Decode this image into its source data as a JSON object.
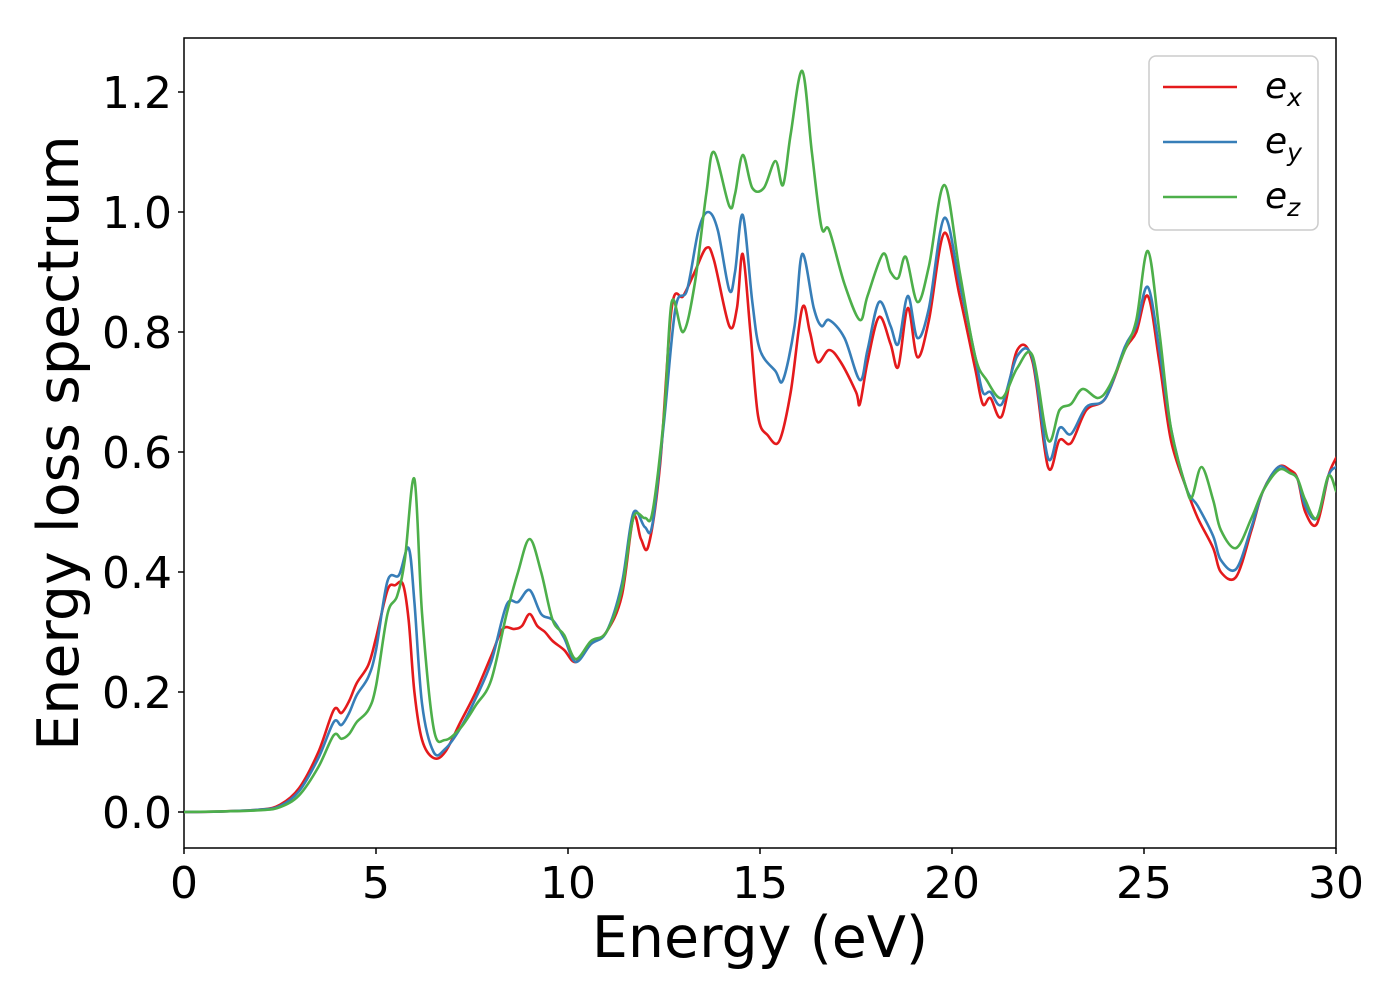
{
  "chart_data": {
    "type": "line",
    "title": "",
    "xlabel": "Energy (eV)",
    "ylabel": "Energy loss spectrum",
    "xlim": [
      0,
      30
    ],
    "ylim": [
      -0.06,
      1.29
    ],
    "xticks": [
      0,
      5,
      10,
      15,
      20,
      25,
      30
    ],
    "yticks": [
      0.0,
      0.2,
      0.4,
      0.6,
      0.8,
      1.0,
      1.2
    ],
    "xtick_labels": [
      "0",
      "5",
      "10",
      "15",
      "20",
      "25",
      "30"
    ],
    "ytick_labels": [
      "0.0",
      "0.2",
      "0.4",
      "0.6",
      "0.8",
      "1.0",
      "1.2"
    ],
    "grid": false,
    "legend_position": "top-right",
    "series": [
      {
        "name": "e_x",
        "legend_base": "e",
        "legend_sub": "x",
        "color": "#e41a1c",
        "points": [
          [
            0,
            0
          ],
          [
            1,
            0.001
          ],
          [
            2,
            0.004
          ],
          [
            2.5,
            0.012
          ],
          [
            3,
            0.04
          ],
          [
            3.5,
            0.1
          ],
          [
            3.9,
            0.17
          ],
          [
            4.1,
            0.165
          ],
          [
            4.3,
            0.185
          ],
          [
            4.5,
            0.215
          ],
          [
            4.8,
            0.245
          ],
          [
            5,
            0.29
          ],
          [
            5.3,
            0.37
          ],
          [
            5.5,
            0.378
          ],
          [
            5.7,
            0.38
          ],
          [
            5.85,
            0.32
          ],
          [
            6,
            0.2
          ],
          [
            6.2,
            0.12
          ],
          [
            6.5,
            0.09
          ],
          [
            6.8,
            0.1
          ],
          [
            7.2,
            0.15
          ],
          [
            7.6,
            0.2
          ],
          [
            8,
            0.26
          ],
          [
            8.3,
            0.305
          ],
          [
            8.6,
            0.305
          ],
          [
            8.8,
            0.31
          ],
          [
            9,
            0.33
          ],
          [
            9.2,
            0.31
          ],
          [
            9.4,
            0.3
          ],
          [
            9.6,
            0.285
          ],
          [
            9.9,
            0.27
          ],
          [
            10.2,
            0.25
          ],
          [
            10.6,
            0.28
          ],
          [
            11,
            0.3
          ],
          [
            11.4,
            0.36
          ],
          [
            11.7,
            0.49
          ],
          [
            11.9,
            0.455
          ],
          [
            12.1,
            0.445
          ],
          [
            12.4,
            0.58
          ],
          [
            12.7,
            0.84
          ],
          [
            13,
            0.86
          ],
          [
            13.3,
            0.9
          ],
          [
            13.6,
            0.94
          ],
          [
            13.8,
            0.92
          ],
          [
            14.2,
            0.81
          ],
          [
            14.4,
            0.84
          ],
          [
            14.55,
            0.93
          ],
          [
            14.75,
            0.8
          ],
          [
            14.95,
            0.66
          ],
          [
            15.2,
            0.628
          ],
          [
            15.5,
            0.618
          ],
          [
            15.8,
            0.7
          ],
          [
            16.1,
            0.84
          ],
          [
            16.3,
            0.8
          ],
          [
            16.5,
            0.75
          ],
          [
            16.8,
            0.77
          ],
          [
            17.1,
            0.75
          ],
          [
            17.5,
            0.7
          ],
          [
            17.6,
            0.68
          ],
          [
            17.8,
            0.75
          ],
          [
            18.1,
            0.825
          ],
          [
            18.4,
            0.78
          ],
          [
            18.6,
            0.742
          ],
          [
            18.85,
            0.84
          ],
          [
            19.1,
            0.758
          ],
          [
            19.4,
            0.82
          ],
          [
            19.8,
            0.965
          ],
          [
            20.2,
            0.86
          ],
          [
            20.6,
            0.74
          ],
          [
            20.8,
            0.68
          ],
          [
            21,
            0.69
          ],
          [
            21.3,
            0.66
          ],
          [
            21.7,
            0.77
          ],
          [
            22.1,
            0.75
          ],
          [
            22.5,
            0.575
          ],
          [
            22.8,
            0.62
          ],
          [
            23.1,
            0.615
          ],
          [
            23.5,
            0.67
          ],
          [
            24,
            0.69
          ],
          [
            24.5,
            0.77
          ],
          [
            24.8,
            0.8
          ],
          [
            25.1,
            0.86
          ],
          [
            25.4,
            0.75
          ],
          [
            25.7,
            0.62
          ],
          [
            26.1,
            0.54
          ],
          [
            26.4,
            0.49
          ],
          [
            26.8,
            0.44
          ],
          [
            27,
            0.4
          ],
          [
            27.4,
            0.392
          ],
          [
            27.8,
            0.47
          ],
          [
            28.1,
            0.535
          ],
          [
            28.5,
            0.575
          ],
          [
            28.8,
            0.57
          ],
          [
            29,
            0.555
          ],
          [
            29.2,
            0.5
          ],
          [
            29.5,
            0.48
          ],
          [
            29.8,
            0.56
          ],
          [
            30,
            0.59
          ]
        ]
      },
      {
        "name": "e_y",
        "legend_base": "e",
        "legend_sub": "y",
        "color": "#377eb8",
        "points": [
          [
            0,
            0
          ],
          [
            1,
            0.001
          ],
          [
            2,
            0.004
          ],
          [
            2.5,
            0.01
          ],
          [
            3,
            0.035
          ],
          [
            3.5,
            0.09
          ],
          [
            3.9,
            0.15
          ],
          [
            4.1,
            0.145
          ],
          [
            4.3,
            0.165
          ],
          [
            4.5,
            0.195
          ],
          [
            4.8,
            0.225
          ],
          [
            5,
            0.27
          ],
          [
            5.3,
            0.385
          ],
          [
            5.6,
            0.395
          ],
          [
            5.85,
            0.44
          ],
          [
            6,
            0.35
          ],
          [
            6.2,
            0.18
          ],
          [
            6.5,
            0.1
          ],
          [
            6.8,
            0.105
          ],
          [
            7.2,
            0.14
          ],
          [
            7.6,
            0.19
          ],
          [
            8,
            0.25
          ],
          [
            8.4,
            0.345
          ],
          [
            8.7,
            0.35
          ],
          [
            9,
            0.37
          ],
          [
            9.3,
            0.33
          ],
          [
            9.6,
            0.32
          ],
          [
            9.9,
            0.29
          ],
          [
            10.2,
            0.25
          ],
          [
            10.6,
            0.28
          ],
          [
            11,
            0.3
          ],
          [
            11.4,
            0.38
          ],
          [
            11.7,
            0.498
          ],
          [
            12,
            0.475
          ],
          [
            12.2,
            0.48
          ],
          [
            12.5,
            0.65
          ],
          [
            12.8,
            0.84
          ],
          [
            13.1,
            0.87
          ],
          [
            13.4,
            0.97
          ],
          [
            13.65,
            1.0
          ],
          [
            13.9,
            0.97
          ],
          [
            14.2,
            0.87
          ],
          [
            14.35,
            0.9
          ],
          [
            14.55,
            0.995
          ],
          [
            14.8,
            0.85
          ],
          [
            15,
            0.77
          ],
          [
            15.4,
            0.735
          ],
          [
            15.6,
            0.72
          ],
          [
            15.9,
            0.81
          ],
          [
            16.1,
            0.93
          ],
          [
            16.4,
            0.84
          ],
          [
            16.6,
            0.81
          ],
          [
            16.8,
            0.82
          ],
          [
            17.2,
            0.79
          ],
          [
            17.6,
            0.72
          ],
          [
            17.8,
            0.77
          ],
          [
            18.1,
            0.85
          ],
          [
            18.4,
            0.81
          ],
          [
            18.6,
            0.78
          ],
          [
            18.85,
            0.86
          ],
          [
            19.1,
            0.79
          ],
          [
            19.4,
            0.84
          ],
          [
            19.8,
            0.99
          ],
          [
            20.2,
            0.88
          ],
          [
            20.6,
            0.76
          ],
          [
            20.8,
            0.7
          ],
          [
            21,
            0.7
          ],
          [
            21.3,
            0.68
          ],
          [
            21.7,
            0.76
          ],
          [
            22.1,
            0.755
          ],
          [
            22.5,
            0.59
          ],
          [
            22.8,
            0.64
          ],
          [
            23.1,
            0.63
          ],
          [
            23.5,
            0.675
          ],
          [
            24,
            0.69
          ],
          [
            24.5,
            0.775
          ],
          [
            24.8,
            0.81
          ],
          [
            25.1,
            0.875
          ],
          [
            25.4,
            0.77
          ],
          [
            25.7,
            0.64
          ],
          [
            26.1,
            0.54
          ],
          [
            26.4,
            0.51
          ],
          [
            26.8,
            0.46
          ],
          [
            27,
            0.42
          ],
          [
            27.4,
            0.405
          ],
          [
            27.8,
            0.475
          ],
          [
            28.1,
            0.535
          ],
          [
            28.5,
            0.575
          ],
          [
            28.8,
            0.565
          ],
          [
            29,
            0.555
          ],
          [
            29.2,
            0.51
          ],
          [
            29.5,
            0.49
          ],
          [
            29.8,
            0.56
          ],
          [
            30,
            0.575
          ]
        ]
      },
      {
        "name": "e_z",
        "legend_base": "e",
        "legend_sub": "z",
        "color": "#4daf4a",
        "points": [
          [
            0,
            0
          ],
          [
            1,
            0.001
          ],
          [
            2,
            0.003
          ],
          [
            2.5,
            0.008
          ],
          [
            3,
            0.028
          ],
          [
            3.5,
            0.075
          ],
          [
            3.9,
            0.128
          ],
          [
            4.1,
            0.122
          ],
          [
            4.3,
            0.13
          ],
          [
            4.5,
            0.15
          ],
          [
            4.8,
            0.17
          ],
          [
            5,
            0.21
          ],
          [
            5.3,
            0.33
          ],
          [
            5.55,
            0.36
          ],
          [
            5.75,
            0.42
          ],
          [
            6,
            0.555
          ],
          [
            6.2,
            0.33
          ],
          [
            6.5,
            0.14
          ],
          [
            6.8,
            0.12
          ],
          [
            7.2,
            0.14
          ],
          [
            7.6,
            0.178
          ],
          [
            8,
            0.22
          ],
          [
            8.4,
            0.33
          ],
          [
            8.7,
            0.4
          ],
          [
            9,
            0.455
          ],
          [
            9.3,
            0.4
          ],
          [
            9.6,
            0.32
          ],
          [
            9.9,
            0.295
          ],
          [
            10.2,
            0.255
          ],
          [
            10.6,
            0.285
          ],
          [
            11,
            0.3
          ],
          [
            11.4,
            0.37
          ],
          [
            11.7,
            0.49
          ],
          [
            12,
            0.49
          ],
          [
            12.2,
            0.5
          ],
          [
            12.5,
            0.66
          ],
          [
            12.7,
            0.85
          ],
          [
            13,
            0.8
          ],
          [
            13.3,
            0.88
          ],
          [
            13.6,
            1.03
          ],
          [
            13.8,
            1.1
          ],
          [
            14.2,
            1.01
          ],
          [
            14.35,
            1.03
          ],
          [
            14.55,
            1.095
          ],
          [
            14.8,
            1.04
          ],
          [
            15.1,
            1.04
          ],
          [
            15.4,
            1.085
          ],
          [
            15.6,
            1.045
          ],
          [
            15.8,
            1.13
          ],
          [
            16.1,
            1.235
          ],
          [
            16.35,
            1.1
          ],
          [
            16.6,
            0.975
          ],
          [
            16.8,
            0.97
          ],
          [
            17.2,
            0.88
          ],
          [
            17.6,
            0.82
          ],
          [
            17.8,
            0.86
          ],
          [
            18.2,
            0.93
          ],
          [
            18.4,
            0.9
          ],
          [
            18.6,
            0.89
          ],
          [
            18.8,
            0.925
          ],
          [
            19.1,
            0.85
          ],
          [
            19.4,
            0.91
          ],
          [
            19.8,
            1.045
          ],
          [
            20.2,
            0.9
          ],
          [
            20.6,
            0.76
          ],
          [
            20.9,
            0.72
          ],
          [
            21.3,
            0.69
          ],
          [
            21.7,
            0.74
          ],
          [
            22.1,
            0.76
          ],
          [
            22.5,
            0.62
          ],
          [
            22.8,
            0.67
          ],
          [
            23.1,
            0.68
          ],
          [
            23.4,
            0.705
          ],
          [
            23.8,
            0.69
          ],
          [
            24.1,
            0.71
          ],
          [
            24.5,
            0.77
          ],
          [
            24.8,
            0.82
          ],
          [
            25.1,
            0.935
          ],
          [
            25.4,
            0.8
          ],
          [
            25.7,
            0.64
          ],
          [
            26.1,
            0.54
          ],
          [
            26.25,
            0.525
          ],
          [
            26.5,
            0.575
          ],
          [
            26.8,
            0.52
          ],
          [
            27,
            0.47
          ],
          [
            27.4,
            0.44
          ],
          [
            27.8,
            0.49
          ],
          [
            28.1,
            0.535
          ],
          [
            28.5,
            0.57
          ],
          [
            28.8,
            0.565
          ],
          [
            29,
            0.555
          ],
          [
            29.2,
            0.52
          ],
          [
            29.5,
            0.49
          ],
          [
            29.8,
            0.56
          ],
          [
            30,
            0.535
          ]
        ]
      }
    ]
  }
}
